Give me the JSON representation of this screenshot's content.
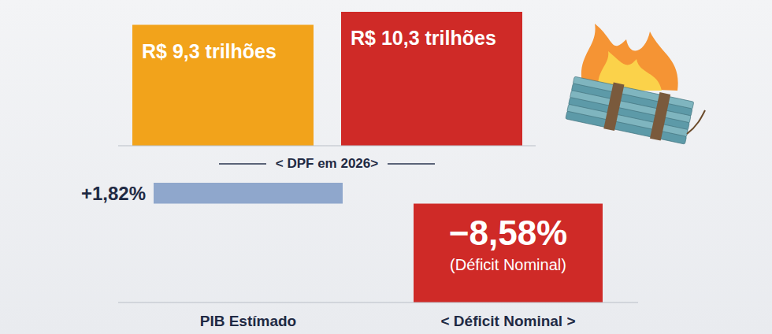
{
  "chart_data": [
    {
      "type": "bar",
      "title": "< DPF em 2026>",
      "categories": [
        null,
        null
      ],
      "values": [
        9.3,
        10.3
      ],
      "value_labels": [
        "R$ 9,3 trilhões",
        "R$ 10,3 trilhões"
      ],
      "colors": [
        "#f2a31b",
        "#cf2a27"
      ],
      "ylim": [
        0,
        10.3
      ],
      "data_labels": true,
      "tick_labels": false
    },
    {
      "type": "bar",
      "categories": [
        "PIB Estímado",
        "< Déficit Nominal >"
      ],
      "values": [
        1.82,
        -8.58
      ],
      "value_labels": [
        "+1,82%",
        "−8,58%"
      ],
      "colors": [
        "#8fa7cc",
        "#cf2a27"
      ],
      "ylim": [
        -8.58,
        1.82
      ],
      "data_labels": true,
      "tick_labels": "x",
      "annotations": [
        {
          "category": "< Déficit Nominal >",
          "text": "(Déficit Nominal)"
        }
      ]
    }
  ]
}
